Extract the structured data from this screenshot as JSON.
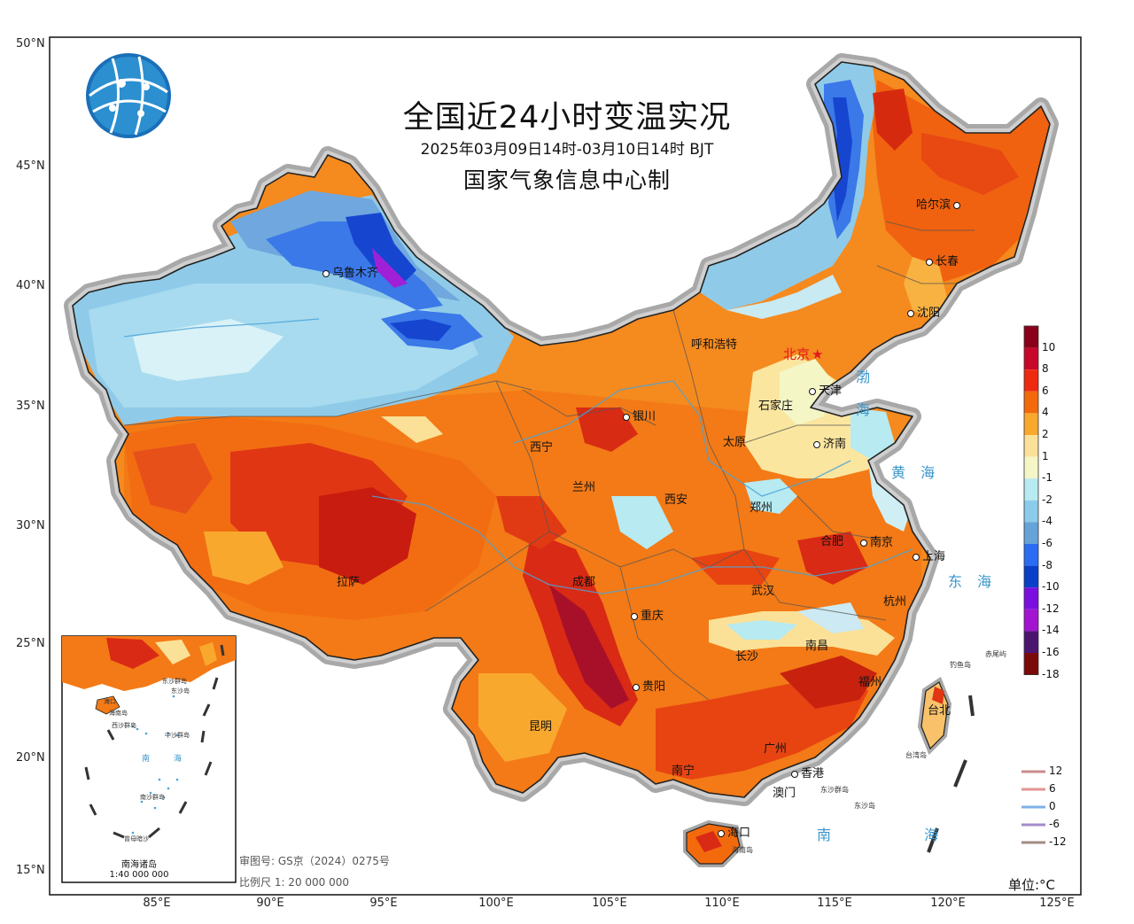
{
  "title": "全国近24小时变温实况",
  "subtitle": "2025年03月09日14时-03月10日14时 BJT",
  "agency": "国家气象信息中心制",
  "unit_label": "单位:°C",
  "approval_no": "审图号: GS京（2024）0275号",
  "scale_note": "比例尺 1: 20 000 000",
  "inset": {
    "title": "南海诸岛",
    "scale": "1:40 000 000"
  },
  "axes": {
    "lat_ticks": [
      "50°N",
      "45°N",
      "40°N",
      "35°N",
      "30°N",
      "25°N",
      "20°N",
      "15°N"
    ],
    "lon_ticks": [
      "85°E",
      "90°E",
      "95°E",
      "100°E",
      "105°E",
      "110°E",
      "115°E",
      "120°E",
      "125°E"
    ]
  },
  "legend": {
    "fill": [
      {
        "label": "10",
        "color": "#8b0019"
      },
      {
        "label": "8",
        "color": "#c8082a"
      },
      {
        "label": "6",
        "color": "#ee2a10"
      },
      {
        "label": "4",
        "color": "#f26a0c"
      },
      {
        "label": "2",
        "color": "#f9a82e"
      },
      {
        "label": "1",
        "color": "#fbe197"
      },
      {
        "label": "-1",
        "color": "#f4f6c6"
      },
      {
        "label": "-2",
        "color": "#b7eaf1"
      },
      {
        "label": "-4",
        "color": "#8ccbe9"
      },
      {
        "label": "-6",
        "color": "#66a3d9"
      },
      {
        "label": "-8",
        "color": "#2a6df2"
      },
      {
        "label": "-10",
        "color": "#0a3fc9"
      },
      {
        "label": "-12",
        "color": "#7a0fe0"
      },
      {
        "label": "-14",
        "color": "#a314d1"
      },
      {
        "label": "-16",
        "color": "#4a1670"
      },
      {
        "label": "-18",
        "color": "#7a0a0a"
      }
    ],
    "lines": [
      {
        "label": "12",
        "color": "#c98b8b"
      },
      {
        "label": "6",
        "color": "#e39595"
      },
      {
        "label": "0",
        "color": "#7fb1e8"
      },
      {
        "label": "-6",
        "color": "#a58bc9"
      },
      {
        "label": "-12",
        "color": "#a38a86"
      }
    ]
  },
  "cities": [
    {
      "name": "乌鲁木齐"
    },
    {
      "name": "哈尔滨"
    },
    {
      "name": "长春"
    },
    {
      "name": "沈阳"
    },
    {
      "name": "呼和浩特"
    },
    {
      "name": "北京"
    },
    {
      "name": "天津"
    },
    {
      "name": "石家庄"
    },
    {
      "name": "银川"
    },
    {
      "name": "太原"
    },
    {
      "name": "济南"
    },
    {
      "name": "西宁"
    },
    {
      "name": "兰州"
    },
    {
      "name": "西安"
    },
    {
      "name": "郑州"
    },
    {
      "name": "合肥"
    },
    {
      "name": "南京"
    },
    {
      "name": "上海"
    },
    {
      "name": "拉萨"
    },
    {
      "name": "成都"
    },
    {
      "name": "武汉"
    },
    {
      "name": "杭州"
    },
    {
      "name": "重庆"
    },
    {
      "name": "长沙"
    },
    {
      "name": "南昌"
    },
    {
      "name": "贵阳"
    },
    {
      "name": "福州"
    },
    {
      "name": "昆明"
    },
    {
      "name": "台北"
    },
    {
      "name": "广州"
    },
    {
      "name": "南宁"
    },
    {
      "name": "香港"
    },
    {
      "name": "澳门"
    },
    {
      "name": "海口"
    }
  ],
  "seas": [
    "渤",
    "海",
    "黄 海",
    "东 海",
    "南 海"
  ],
  "island_labels": [
    "钓鱼岛",
    "赤尾屿",
    "台湾岛",
    "东沙群岛",
    "东沙岛",
    "海南岛"
  ],
  "inset_labels": [
    "海口",
    "海南岛",
    "东沙群岛",
    "东沙岛",
    "西沙群岛",
    "中沙群岛",
    "南",
    "海",
    "南沙群岛",
    "曾母暗沙"
  ]
}
